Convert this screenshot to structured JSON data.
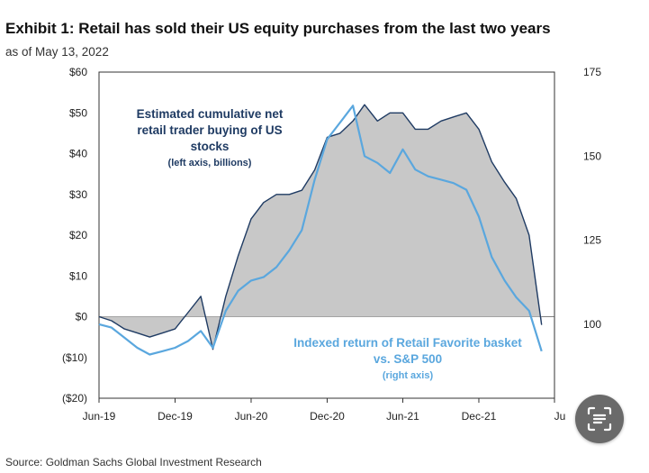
{
  "title": "Exhibit 1: Retail has sold their US equity purchases from the last two years",
  "subtitle": "as of May 13, 2022",
  "source": "Source: Goldman Sachs Global Investment Research",
  "chart_data": {
    "type": "line",
    "x_ticks": [
      "Jun-19",
      "Dec-19",
      "Jun-20",
      "Dec-20",
      "Jun-21",
      "Dec-21",
      "Ju"
    ],
    "y_left": {
      "ticks": [
        "$60",
        "$50",
        "$40",
        "$30",
        "$20",
        "$10",
        "$0",
        "($10)",
        "($20)"
      ],
      "range": [
        -20,
        60
      ]
    },
    "y_right": {
      "ticks": [
        "175",
        "150",
        "125",
        "100"
      ],
      "range": [
        78,
        175
      ]
    },
    "series": [
      {
        "key": "net_buying",
        "axis": "left",
        "color": "#1f3b63",
        "fill": "#c8c8c8",
        "dates": [
          "2019-06",
          "2019-07",
          "2019-08",
          "2019-09",
          "2019-10",
          "2019-11",
          "2019-12",
          "2020-01",
          "2020-02",
          "2020-03",
          "2020-04",
          "2020-05",
          "2020-06",
          "2020-07",
          "2020-08",
          "2020-09",
          "2020-10",
          "2020-11",
          "2020-12",
          "2021-01",
          "2021-02",
          "2021-03",
          "2021-04",
          "2021-05",
          "2021-06",
          "2021-07",
          "2021-08",
          "2021-09",
          "2021-10",
          "2021-11",
          "2021-12",
          "2022-01",
          "2022-02",
          "2022-03",
          "2022-04",
          "2022-05"
        ],
        "values": [
          0,
          -1,
          -3,
          -4,
          -5,
          -4,
          -3,
          1,
          5,
          -8,
          5,
          15,
          24,
          28,
          30,
          30,
          31,
          36,
          44,
          45,
          48,
          52,
          48,
          50,
          50,
          46,
          46,
          48,
          49,
          50,
          46,
          38,
          33,
          29,
          20,
          -2
        ]
      },
      {
        "key": "retail_favorite",
        "axis": "right",
        "color": "#5aa7de",
        "dates": [
          "2019-06",
          "2019-07",
          "2019-08",
          "2019-09",
          "2019-10",
          "2019-11",
          "2019-12",
          "2020-01",
          "2020-02",
          "2020-03",
          "2020-04",
          "2020-05",
          "2020-06",
          "2020-07",
          "2020-08",
          "2020-09",
          "2020-10",
          "2020-11",
          "2020-12",
          "2021-01",
          "2021-02",
          "2021-03",
          "2021-04",
          "2021-05",
          "2021-06",
          "2021-07",
          "2021-08",
          "2021-09",
          "2021-10",
          "2021-11",
          "2021-12",
          "2022-01",
          "2022-02",
          "2022-03",
          "2022-04",
          "2022-05"
        ],
        "values": [
          100,
          99,
          96,
          93,
          91,
          92,
          93,
          95,
          98,
          93,
          104,
          110,
          113,
          114,
          117,
          122,
          128,
          143,
          155,
          160,
          165,
          150,
          148,
          145,
          152,
          146,
          144,
          143,
          142,
          140,
          132,
          120,
          113,
          108,
          104,
          92
        ]
      }
    ],
    "annotations": {
      "net_buying": [
        "Estimated cumulative net",
        "retail trader buying of US",
        "stocks",
        "(left axis, billions)"
      ],
      "retail_favorite": [
        "Indexed return of Retail Favorite basket",
        "vs. S&P 500",
        "(right axis)"
      ]
    }
  }
}
